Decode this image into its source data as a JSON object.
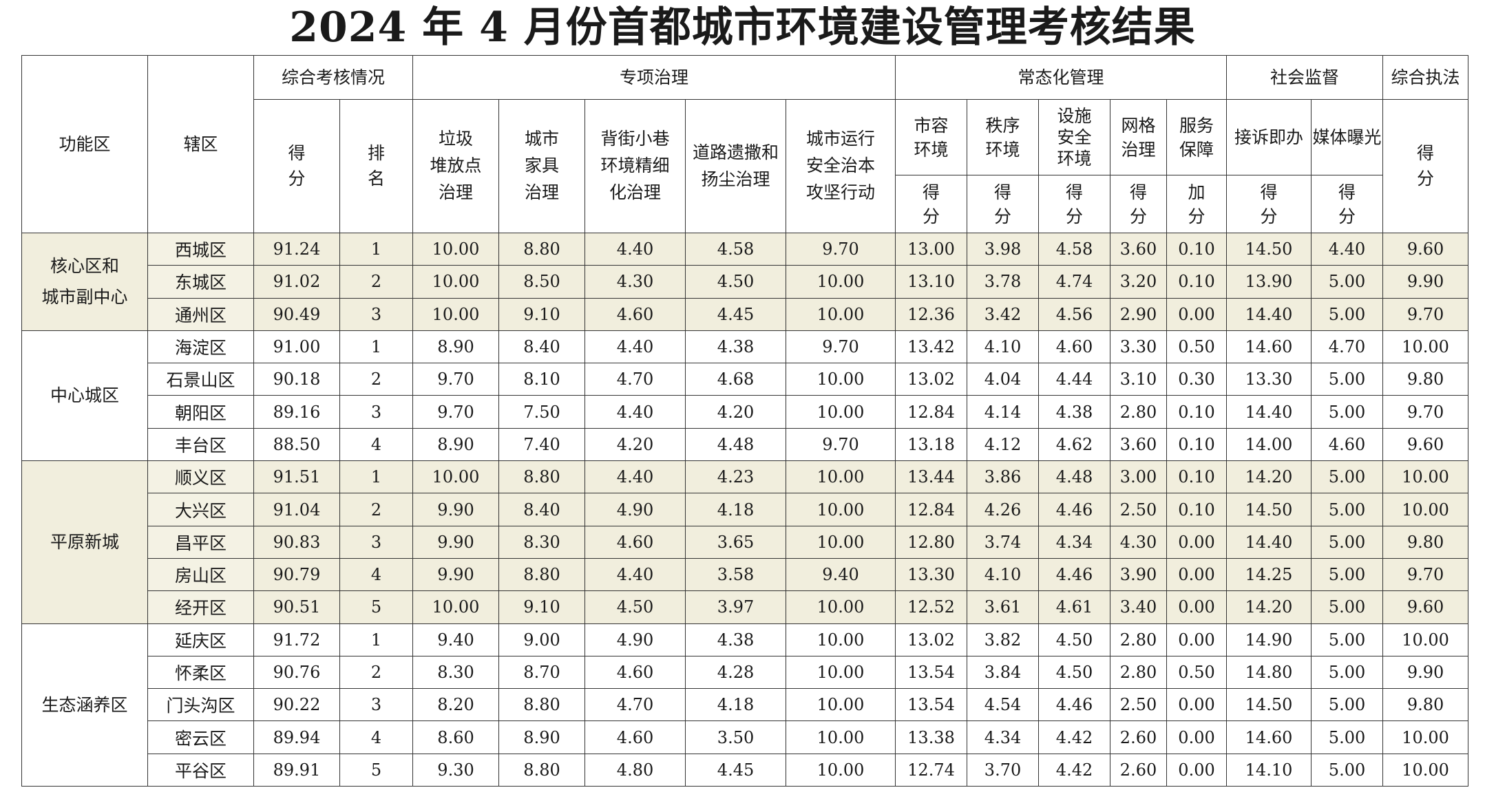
{
  "title": "2024 年 4 月份首都城市环境建设管理考核结果",
  "header": {
    "func_area": "功能区",
    "district": "辖区",
    "group_overall": "综合考核情况",
    "group_special": "专项治理",
    "group_routine": "常态化管理",
    "group_social": "社会监督",
    "group_enforce": "综合执法",
    "score_v": [
      "得",
      "分"
    ],
    "rank_v": [
      "排",
      "名"
    ],
    "special_cols": [
      [
        "垃圾",
        "堆放点",
        "治理"
      ],
      [
        "城市",
        "家具",
        "治理"
      ],
      [
        "背街小巷",
        "环境精细",
        "化治理"
      ],
      [
        "道路遗撒和",
        "扬尘治理"
      ],
      [
        "城市运行",
        "安全治本",
        "攻坚行动"
      ]
    ],
    "routine_cols": [
      [
        "市容",
        "环境"
      ],
      [
        "秩序",
        "环境"
      ],
      [
        "设施",
        "安全",
        "环境"
      ],
      [
        "网格",
        "治理"
      ],
      [
        "服务",
        "保障"
      ]
    ],
    "social_cols": [
      "接诉即办",
      "媒体曝光"
    ],
    "sub_score": [
      "得",
      "分"
    ],
    "sub_bonus": [
      "加",
      "分"
    ]
  },
  "groups": [
    {
      "name_lines": [
        "核心区和",
        "城市副中心"
      ],
      "rows": [
        [
          "西城区",
          "91.24",
          "1",
          "10.00",
          "8.80",
          "4.40",
          "4.58",
          "9.70",
          "13.00",
          "3.98",
          "4.58",
          "3.60",
          "0.10",
          "14.50",
          "4.40",
          "9.60"
        ],
        [
          "东城区",
          "91.02",
          "2",
          "10.00",
          "8.50",
          "4.30",
          "4.50",
          "10.00",
          "13.10",
          "3.78",
          "4.74",
          "3.20",
          "0.10",
          "13.90",
          "5.00",
          "9.90"
        ],
        [
          "通州区",
          "90.49",
          "3",
          "10.00",
          "9.10",
          "4.60",
          "4.45",
          "10.00",
          "12.36",
          "3.42",
          "4.56",
          "2.90",
          "0.00",
          "14.40",
          "5.00",
          "9.70"
        ]
      ]
    },
    {
      "name_lines": [
        "中心城区"
      ],
      "rows": [
        [
          "海淀区",
          "91.00",
          "1",
          "8.90",
          "8.40",
          "4.40",
          "4.38",
          "9.70",
          "13.42",
          "4.10",
          "4.60",
          "3.30",
          "0.50",
          "14.60",
          "4.70",
          "10.00"
        ],
        [
          "石景山区",
          "90.18",
          "2",
          "9.70",
          "8.10",
          "4.70",
          "4.68",
          "10.00",
          "13.02",
          "4.04",
          "4.44",
          "3.10",
          "0.30",
          "13.30",
          "5.00",
          "9.80"
        ],
        [
          "朝阳区",
          "89.16",
          "3",
          "9.70",
          "7.50",
          "4.40",
          "4.20",
          "10.00",
          "12.84",
          "4.14",
          "4.38",
          "2.80",
          "0.10",
          "14.40",
          "5.00",
          "9.70"
        ],
        [
          "丰台区",
          "88.50",
          "4",
          "8.90",
          "7.40",
          "4.20",
          "4.48",
          "9.70",
          "13.18",
          "4.12",
          "4.62",
          "3.60",
          "0.10",
          "14.00",
          "4.60",
          "9.60"
        ]
      ]
    },
    {
      "name_lines": [
        "平原新城"
      ],
      "rows": [
        [
          "顺义区",
          "91.51",
          "1",
          "10.00",
          "8.80",
          "4.40",
          "4.23",
          "10.00",
          "13.44",
          "3.86",
          "4.48",
          "3.00",
          "0.10",
          "14.20",
          "5.00",
          "10.00"
        ],
        [
          "大兴区",
          "91.04",
          "2",
          "9.90",
          "8.40",
          "4.90",
          "4.18",
          "10.00",
          "12.84",
          "4.26",
          "4.46",
          "2.50",
          "0.10",
          "14.50",
          "5.00",
          "10.00"
        ],
        [
          "昌平区",
          "90.83",
          "3",
          "9.90",
          "8.30",
          "4.60",
          "3.65",
          "10.00",
          "12.80",
          "3.74",
          "4.34",
          "4.30",
          "0.00",
          "14.40",
          "5.00",
          "9.80"
        ],
        [
          "房山区",
          "90.79",
          "4",
          "9.90",
          "8.80",
          "4.40",
          "3.58",
          "9.40",
          "13.30",
          "4.10",
          "4.46",
          "3.90",
          "0.00",
          "14.25",
          "5.00",
          "9.70"
        ],
        [
          "经开区",
          "90.51",
          "5",
          "10.00",
          "9.10",
          "4.50",
          "3.97",
          "10.00",
          "12.52",
          "3.61",
          "4.61",
          "3.40",
          "0.00",
          "14.20",
          "5.00",
          "9.60"
        ]
      ]
    },
    {
      "name_lines": [
        "生态涵养区"
      ],
      "rows": [
        [
          "延庆区",
          "91.72",
          "1",
          "9.40",
          "9.00",
          "4.90",
          "4.38",
          "10.00",
          "13.02",
          "3.82",
          "4.50",
          "2.80",
          "0.00",
          "14.90",
          "5.00",
          "10.00"
        ],
        [
          "怀柔区",
          "90.76",
          "2",
          "8.30",
          "8.70",
          "4.60",
          "4.28",
          "10.00",
          "13.54",
          "3.84",
          "4.50",
          "2.80",
          "0.50",
          "14.80",
          "5.00",
          "9.90"
        ],
        [
          "门头沟区",
          "90.22",
          "3",
          "8.20",
          "8.80",
          "4.70",
          "4.18",
          "10.00",
          "13.54",
          "4.54",
          "4.46",
          "2.50",
          "0.00",
          "14.50",
          "5.00",
          "9.80"
        ],
        [
          "密云区",
          "89.94",
          "4",
          "8.60",
          "8.90",
          "4.60",
          "3.50",
          "10.00",
          "13.38",
          "4.34",
          "4.42",
          "2.60",
          "0.00",
          "14.60",
          "5.00",
          "10.00"
        ],
        [
          "平谷区",
          "89.91",
          "5",
          "9.30",
          "8.80",
          "4.80",
          "4.45",
          "10.00",
          "12.74",
          "3.70",
          "4.42",
          "2.60",
          "0.00",
          "14.10",
          "5.00",
          "10.00"
        ]
      ]
    }
  ],
  "colors": {
    "tint": "#f1eedd",
    "border": "#333333"
  }
}
